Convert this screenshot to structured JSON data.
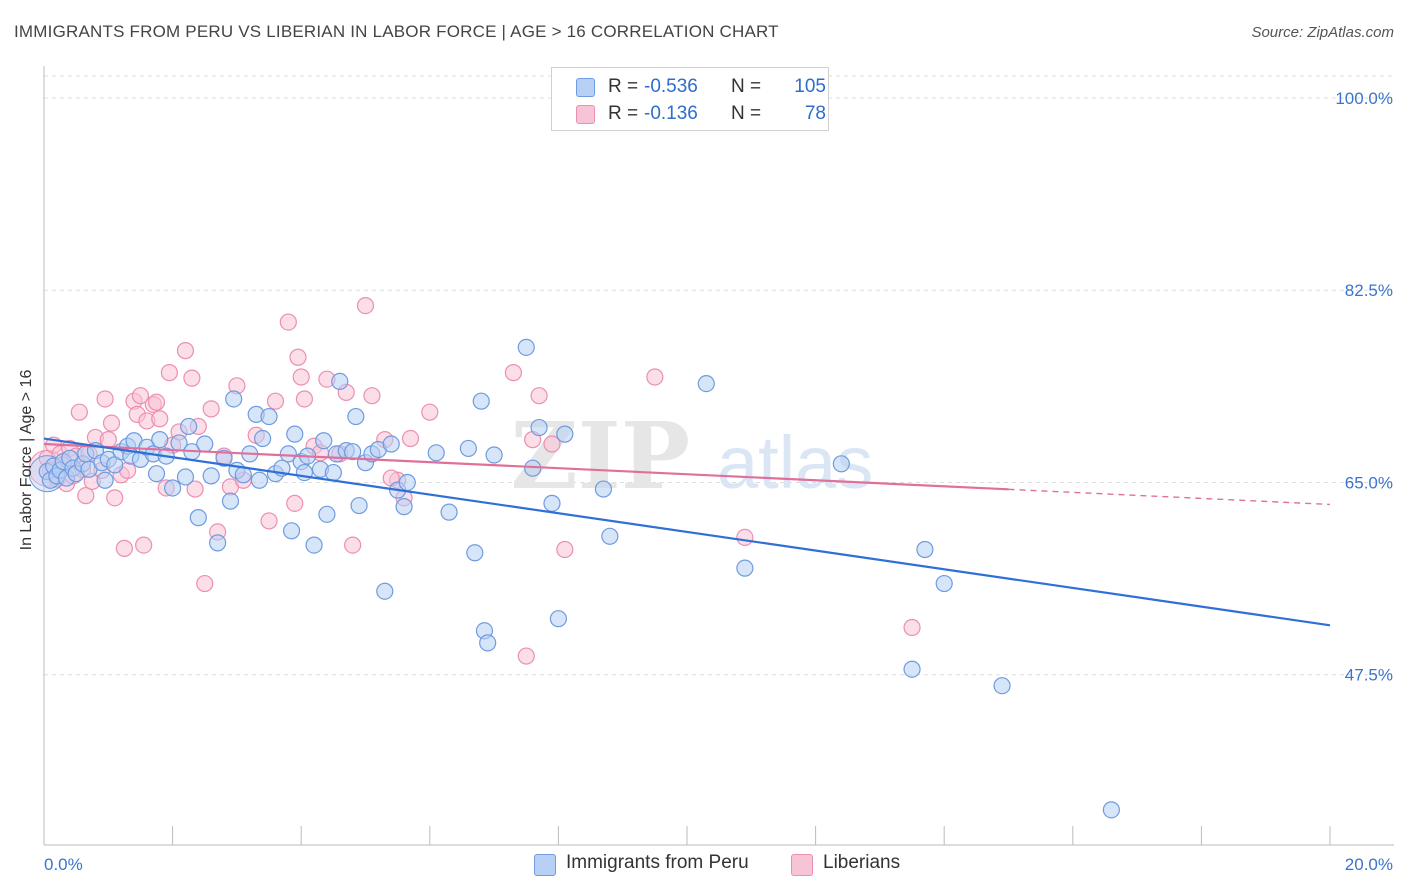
{
  "title": "IMMIGRANTS FROM PERU VS LIBERIAN IN LABOR FORCE | AGE > 16 CORRELATION CHART",
  "source": "Source: ZipAtlas.com",
  "watermark": "ZIPatlas",
  "legend_top": [
    {
      "r_label": "R =",
      "r_value": "-0.536",
      "n_label": "N =",
      "n_value": "105"
    },
    {
      "r_label": "R =",
      "r_value": "-0.136",
      "n_label": "N =",
      "n_value": "78"
    }
  ],
  "legend_bottom": [
    {
      "label": "Immigrants from Peru"
    },
    {
      "label": "Liberians"
    }
  ],
  "colors": {
    "peru_fill": "#b7d0f4",
    "peru_stroke": "#6f9be0",
    "peru_line": "#2f6fd6",
    "lib_fill": "#f7c3d6",
    "lib_stroke": "#ec8fb0",
    "lib_line": "#e0709a",
    "axis_text": "#3a74d0",
    "grid": "#dddddd"
  },
  "chart_data": {
    "type": "scatter",
    "title": "IMMIGRANTS FROM PERU VS LIBERIAN IN LABOR FORCE | AGE > 16 CORRELATION CHART",
    "xlabel": "",
    "ylabel": "In Labor Force | Age > 16",
    "xlim": [
      0,
      20
    ],
    "ylim": [
      32,
      102
    ],
    "x_tick_labels": [
      "0.0%",
      "20.0%"
    ],
    "y_ticks": [
      47.5,
      65.0,
      82.5,
      100.0
    ],
    "y_tick_labels": [
      "47.5%",
      "65.0%",
      "82.5%",
      "100.0%"
    ],
    "grid": true,
    "legend_position": "top-center",
    "series": [
      {
        "name": "Immigrants from Peru",
        "trend": {
          "x0": 0.0,
          "y0": 69.0,
          "x1": 20.0,
          "y1": 52.0,
          "solid_to": 20.0
        },
        "points": [
          [
            0.05,
            66.0
          ],
          [
            0.1,
            65.2
          ],
          [
            0.15,
            66.5
          ],
          [
            0.2,
            65.6
          ],
          [
            0.25,
            66.1
          ],
          [
            0.3,
            66.9
          ],
          [
            0.35,
            65.4
          ],
          [
            0.4,
            67.2
          ],
          [
            0.45,
            66.3
          ],
          [
            0.5,
            65.8
          ],
          [
            0.6,
            66.7
          ],
          [
            0.65,
            67.6
          ],
          [
            0.7,
            66.2
          ],
          [
            0.8,
            67.9
          ],
          [
            0.9,
            66.8
          ],
          [
            0.95,
            65.2
          ],
          [
            1.0,
            67.1
          ],
          [
            1.1,
            66.6
          ],
          [
            1.2,
            67.8
          ],
          [
            1.3,
            68.3
          ],
          [
            1.35,
            67.4
          ],
          [
            1.4,
            68.8
          ],
          [
            1.5,
            67.1
          ],
          [
            1.6,
            68.2
          ],
          [
            1.7,
            67.6
          ],
          [
            1.75,
            65.8
          ],
          [
            1.8,
            68.9
          ],
          [
            1.9,
            67.4
          ],
          [
            2.0,
            64.5
          ],
          [
            2.1,
            68.6
          ],
          [
            2.2,
            65.5
          ],
          [
            2.25,
            70.1
          ],
          [
            2.3,
            67.8
          ],
          [
            2.4,
            61.8
          ],
          [
            2.5,
            68.5
          ],
          [
            2.6,
            65.6
          ],
          [
            2.7,
            59.5
          ],
          [
            2.8,
            67.2
          ],
          [
            2.9,
            63.3
          ],
          [
            2.95,
            72.6
          ],
          [
            3.0,
            66.1
          ],
          [
            3.1,
            65.7
          ],
          [
            3.2,
            67.6
          ],
          [
            3.3,
            71.2
          ],
          [
            3.35,
            65.2
          ],
          [
            3.4,
            69.0
          ],
          [
            3.5,
            71.0
          ],
          [
            3.6,
            65.8
          ],
          [
            3.7,
            66.3
          ],
          [
            3.8,
            67.6
          ],
          [
            3.85,
            60.6
          ],
          [
            3.9,
            69.4
          ],
          [
            4.0,
            66.9
          ],
          [
            4.05,
            65.9
          ],
          [
            4.1,
            67.4
          ],
          [
            4.2,
            59.3
          ],
          [
            4.3,
            66.2
          ],
          [
            4.35,
            68.8
          ],
          [
            4.4,
            62.1
          ],
          [
            4.5,
            65.9
          ],
          [
            4.55,
            67.6
          ],
          [
            4.6,
            74.2
          ],
          [
            4.7,
            67.9
          ],
          [
            4.8,
            67.8
          ],
          [
            4.85,
            71.0
          ],
          [
            4.9,
            62.9
          ],
          [
            5.0,
            66.8
          ],
          [
            5.1,
            67.6
          ],
          [
            5.2,
            68.0
          ],
          [
            5.3,
            55.1
          ],
          [
            5.4,
            68.5
          ],
          [
            5.5,
            64.3
          ],
          [
            5.6,
            62.8
          ],
          [
            5.65,
            65.0
          ],
          [
            6.1,
            67.7
          ],
          [
            6.3,
            62.3
          ],
          [
            6.6,
            68.1
          ],
          [
            6.7,
            58.6
          ],
          [
            6.8,
            72.4
          ],
          [
            6.85,
            51.5
          ],
          [
            6.9,
            50.4
          ],
          [
            7.0,
            67.5
          ],
          [
            7.5,
            77.3
          ],
          [
            7.6,
            66.3
          ],
          [
            7.7,
            70.0
          ],
          [
            7.9,
            63.1
          ],
          [
            8.0,
            52.6
          ],
          [
            8.1,
            69.4
          ],
          [
            8.7,
            64.4
          ],
          [
            8.8,
            60.1
          ],
          [
            10.3,
            74.0
          ],
          [
            10.9,
            57.2
          ],
          [
            12.4,
            66.7
          ],
          [
            13.5,
            48.0
          ],
          [
            13.7,
            58.9
          ],
          [
            14.0,
            55.8
          ],
          [
            14.9,
            46.5
          ],
          [
            16.6,
            35.2
          ]
        ]
      },
      {
        "name": "Liberians",
        "trend": {
          "x0": 0.0,
          "y0": 68.5,
          "x1": 20.0,
          "y1": 63.0,
          "solid_to": 15.0
        },
        "points": [
          [
            0.05,
            67.2
          ],
          [
            0.1,
            66.1
          ],
          [
            0.15,
            68.4
          ],
          [
            0.2,
            65.3
          ],
          [
            0.25,
            67.6
          ],
          [
            0.3,
            66.6
          ],
          [
            0.35,
            64.9
          ],
          [
            0.4,
            68.1
          ],
          [
            0.45,
            65.6
          ],
          [
            0.5,
            67.4
          ],
          [
            0.55,
            71.4
          ],
          [
            0.6,
            66.2
          ],
          [
            0.65,
            63.8
          ],
          [
            0.7,
            67.6
          ],
          [
            0.75,
            65.1
          ],
          [
            0.8,
            69.1
          ],
          [
            0.9,
            66.1
          ],
          [
            0.95,
            72.6
          ],
          [
            1.0,
            68.9
          ],
          [
            1.05,
            70.4
          ],
          [
            1.1,
            63.6
          ],
          [
            1.2,
            65.7
          ],
          [
            1.25,
            59.0
          ],
          [
            1.3,
            66.1
          ],
          [
            1.4,
            72.4
          ],
          [
            1.45,
            71.2
          ],
          [
            1.5,
            72.9
          ],
          [
            1.55,
            59.3
          ],
          [
            1.6,
            70.6
          ],
          [
            1.7,
            72.1
          ],
          [
            1.75,
            72.3
          ],
          [
            1.8,
            70.8
          ],
          [
            1.9,
            64.5
          ],
          [
            1.95,
            75.0
          ],
          [
            2.0,
            68.4
          ],
          [
            2.1,
            69.6
          ],
          [
            2.2,
            77.0
          ],
          [
            2.3,
            74.5
          ],
          [
            2.35,
            64.4
          ],
          [
            2.4,
            70.1
          ],
          [
            2.5,
            55.8
          ],
          [
            2.6,
            71.7
          ],
          [
            2.7,
            60.5
          ],
          [
            2.8,
            67.4
          ],
          [
            2.9,
            64.6
          ],
          [
            3.0,
            73.8
          ],
          [
            3.1,
            65.2
          ],
          [
            3.3,
            69.3
          ],
          [
            3.5,
            61.5
          ],
          [
            3.6,
            72.4
          ],
          [
            3.8,
            79.6
          ],
          [
            3.9,
            63.1
          ],
          [
            3.95,
            76.4
          ],
          [
            4.0,
            74.6
          ],
          [
            4.05,
            72.6
          ],
          [
            4.2,
            68.3
          ],
          [
            4.3,
            67.7
          ],
          [
            4.4,
            74.4
          ],
          [
            4.6,
            67.6
          ],
          [
            4.7,
            73.2
          ],
          [
            4.8,
            59.3
          ],
          [
            5.0,
            81.1
          ],
          [
            5.1,
            72.9
          ],
          [
            5.3,
            68.9
          ],
          [
            5.5,
            65.2
          ],
          [
            5.6,
            63.6
          ],
          [
            5.7,
            69.0
          ],
          [
            6.0,
            71.4
          ],
          [
            7.3,
            75.0
          ],
          [
            7.5,
            49.2
          ],
          [
            7.6,
            68.9
          ],
          [
            7.7,
            72.9
          ],
          [
            7.9,
            68.5
          ],
          [
            8.1,
            58.9
          ],
          [
            9.5,
            74.6
          ],
          [
            10.9,
            60.0
          ],
          [
            13.5,
            51.8
          ],
          [
            5.4,
            65.4
          ]
        ]
      }
    ]
  }
}
